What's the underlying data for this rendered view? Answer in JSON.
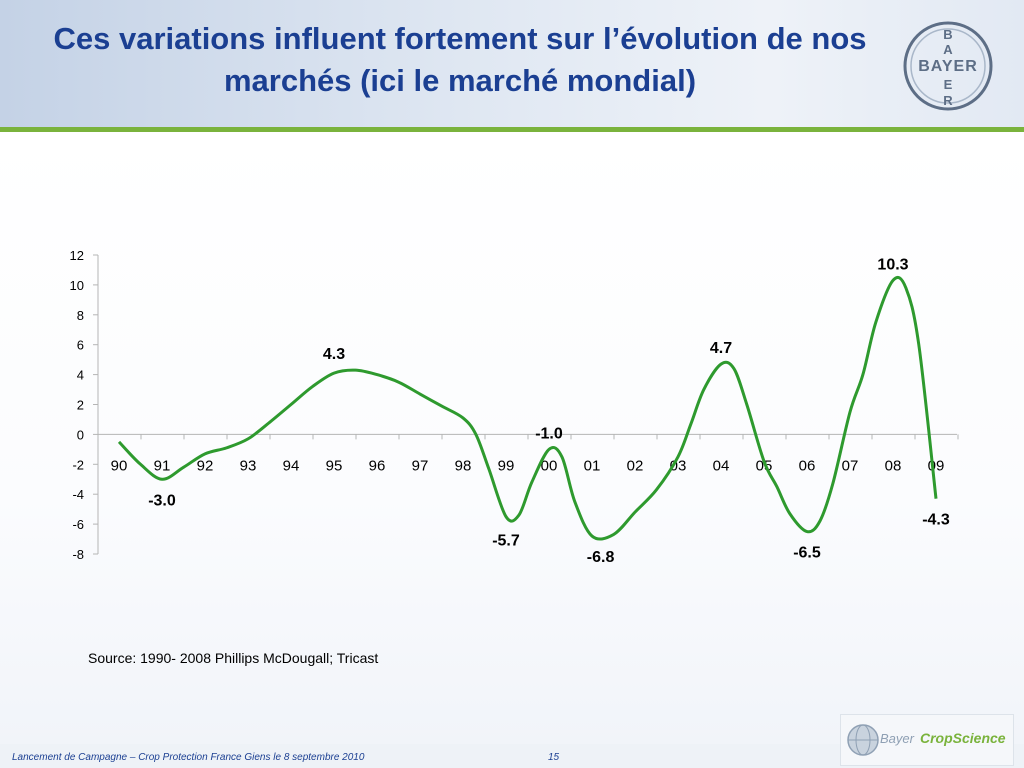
{
  "slide": {
    "title": "Ces variations influent fortement sur l’évolution de nos marchés (ici le marché mondial)",
    "source": "Source: 1990- 2008 Phillips McDougall; Tricast",
    "footer": "Lancement de Campagne – Crop Protection France Giens le 8 septembre 2010",
    "page_number": "15",
    "logo_letters": {
      "vertical": "BAYER",
      "horizontal": "BAYER"
    },
    "bottom_logo": {
      "company": "Bayer",
      "division": "CropScience"
    }
  },
  "colors": {
    "title": "#1b3f92",
    "accent_green": "#7ab33c",
    "line": "#2e9a2e"
  },
  "chart_data": {
    "type": "line",
    "ylim": [
      -8,
      12
    ],
    "yticks": [
      -8,
      -6,
      -4,
      -2,
      0,
      2,
      4,
      6,
      8,
      10,
      12
    ],
    "categories": [
      "90",
      "91",
      "92",
      "93",
      "94",
      "95",
      "96",
      "97",
      "98",
      "99",
      "00",
      "01",
      "02",
      "03",
      "04",
      "05",
      "06",
      "07",
      "08",
      "09"
    ],
    "series": [
      {
        "x": [
          90,
          90.5,
          91,
          91.5,
          92,
          92.5,
          93,
          93.5,
          94,
          94.5,
          95,
          95.5,
          96,
          96.5,
          97,
          97.5,
          98,
          98.3,
          98.6,
          99,
          99.3,
          99.6,
          100,
          100.3,
          100.6,
          101,
          101.5,
          102,
          102.5,
          103,
          103.3,
          103.6,
          104,
          104.3,
          104.6,
          105,
          105.3,
          105.6,
          106,
          106.3,
          106.6,
          107,
          107.3,
          107.6,
          108,
          108.3,
          108.6,
          109
        ],
        "y": [
          -0.5,
          -2.0,
          -3.0,
          -2.2,
          -1.3,
          -0.9,
          -0.3,
          0.8,
          2.0,
          3.2,
          4.1,
          4.3,
          4.0,
          3.5,
          2.7,
          1.9,
          1.1,
          0.0,
          -2.3,
          -5.5,
          -5.4,
          -3.2,
          -1.0,
          -1.5,
          -4.5,
          -6.8,
          -6.7,
          -5.2,
          -3.7,
          -1.5,
          0.7,
          3.0,
          4.7,
          4.4,
          2.0,
          -1.8,
          -3.5,
          -5.3,
          -6.5,
          -5.8,
          -3.3,
          1.5,
          4.0,
          7.5,
          10.3,
          9.8,
          6.0,
          -4.3
        ]
      }
    ],
    "data_labels": [
      {
        "x": 91,
        "y": -3.0,
        "text": "-3.0",
        "pos": "below"
      },
      {
        "x": 95,
        "y": 4.3,
        "text": "4.3",
        "pos": "above"
      },
      {
        "x": 99,
        "y": -5.7,
        "text": "-5.7",
        "pos": "below"
      },
      {
        "x": 100,
        "y": -1.0,
        "text": "-1.0",
        "pos": "above"
      },
      {
        "x": 101.2,
        "y": -6.8,
        "text": "-6.8",
        "pos": "below"
      },
      {
        "x": 104,
        "y": 4.7,
        "text": "4.7",
        "pos": "above"
      },
      {
        "x": 106,
        "y": -6.5,
        "text": "-6.5",
        "pos": "below"
      },
      {
        "x": 108,
        "y": 10.3,
        "text": "10.3",
        "pos": "above"
      },
      {
        "x": 109,
        "y": -4.3,
        "text": "-4.3",
        "pos": "below"
      }
    ],
    "grid": false,
    "legend": "none"
  }
}
